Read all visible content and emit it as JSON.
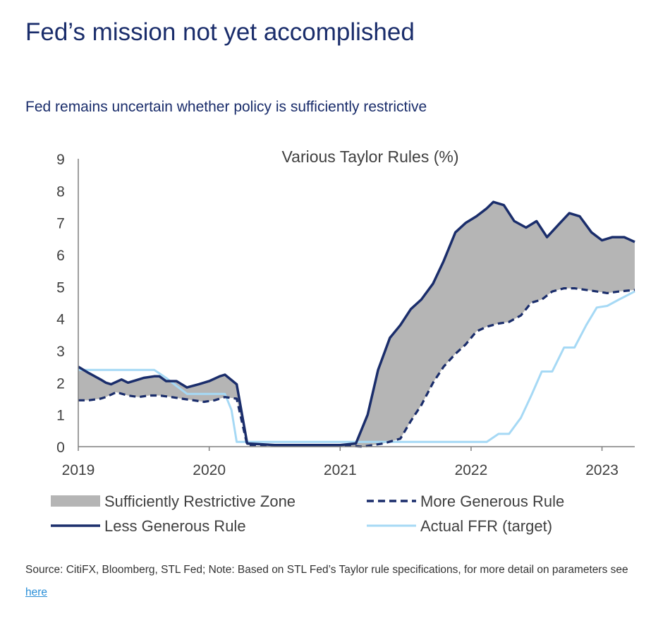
{
  "header": {
    "title": "Fed’s mission not yet accomplished",
    "subtitle": "Fed remains uncertain whether policy is sufficiently restrictive"
  },
  "footnote": {
    "text": "Source: CitiFX, Bloomberg, STL Fed; Note: Based on STL Fed’s Taylor rule specifications, for more detail on parameters see",
    "link_label": "here"
  },
  "colors": {
    "title": "#1a2d6b",
    "less_generous": "#1a2d6b",
    "more_generous": "#1a2d6b",
    "actual_ffr": "#a6d9f5",
    "zone_fill": "#b5b5b5",
    "axis": "#7f7f7f",
    "link": "#2a8fd8"
  },
  "chart_data": {
    "type": "line",
    "title": "Various Taylor Rules (%)",
    "xlabel": "",
    "ylabel": "",
    "x_ticks": [
      "2019",
      "2020",
      "2021",
      "2022",
      "2023"
    ],
    "xlim": [
      2019.0,
      2023.25
    ],
    "ylim": [
      0,
      9
    ],
    "y_ticks": [
      0,
      1,
      2,
      3,
      4,
      5,
      6,
      7,
      8,
      9
    ],
    "grid": false,
    "legend_position": "bottom",
    "shaded_area": {
      "name": "Sufficiently Restrictive Zone",
      "between": [
        "Less Generous Rule",
        "More Generous Rule"
      ]
    },
    "series": [
      {
        "name": "Less Generous Rule",
        "style": "solid",
        "points": [
          [
            2019.0,
            2.5
          ],
          [
            2019.08,
            2.3
          ],
          [
            2019.17,
            2.1
          ],
          [
            2019.21,
            2.0
          ],
          [
            2019.25,
            1.95
          ],
          [
            2019.33,
            2.1
          ],
          [
            2019.38,
            2.0
          ],
          [
            2019.46,
            2.1
          ],
          [
            2019.5,
            2.15
          ],
          [
            2019.58,
            2.2
          ],
          [
            2019.62,
            2.2
          ],
          [
            2019.67,
            2.05
          ],
          [
            2019.75,
            2.05
          ],
          [
            2019.83,
            1.85
          ],
          [
            2019.92,
            1.95
          ],
          [
            2020.0,
            2.05
          ],
          [
            2020.08,
            2.2
          ],
          [
            2020.12,
            2.25
          ],
          [
            2020.21,
            1.95
          ],
          [
            2020.29,
            0.1
          ],
          [
            2020.5,
            0.05
          ],
          [
            2021.0,
            0.05
          ],
          [
            2021.12,
            0.1
          ],
          [
            2021.21,
            1.0
          ],
          [
            2021.29,
            2.4
          ],
          [
            2021.38,
            3.4
          ],
          [
            2021.46,
            3.8
          ],
          [
            2021.54,
            4.3
          ],
          [
            2021.62,
            4.6
          ],
          [
            2021.71,
            5.1
          ],
          [
            2021.79,
            5.8
          ],
          [
            2021.88,
            6.7
          ],
          [
            2021.96,
            7.0
          ],
          [
            2022.04,
            7.2
          ],
          [
            2022.12,
            7.45
          ],
          [
            2022.17,
            7.65
          ],
          [
            2022.25,
            7.55
          ],
          [
            2022.33,
            7.05
          ],
          [
            2022.42,
            6.85
          ],
          [
            2022.5,
            7.05
          ],
          [
            2022.58,
            6.55
          ],
          [
            2022.67,
            6.95
          ],
          [
            2022.75,
            7.3
          ],
          [
            2022.83,
            7.2
          ],
          [
            2022.92,
            6.7
          ],
          [
            2023.0,
            6.45
          ],
          [
            2023.08,
            6.55
          ],
          [
            2023.17,
            6.55
          ],
          [
            2023.25,
            6.4
          ]
        ]
      },
      {
        "name": "More Generous Rule",
        "style": "dashed",
        "points": [
          [
            2019.0,
            1.45
          ],
          [
            2019.08,
            1.45
          ],
          [
            2019.17,
            1.5
          ],
          [
            2019.21,
            1.55
          ],
          [
            2019.29,
            1.7
          ],
          [
            2019.38,
            1.6
          ],
          [
            2019.46,
            1.55
          ],
          [
            2019.54,
            1.6
          ],
          [
            2019.62,
            1.6
          ],
          [
            2019.71,
            1.55
          ],
          [
            2019.79,
            1.5
          ],
          [
            2019.88,
            1.45
          ],
          [
            2019.96,
            1.4
          ],
          [
            2020.04,
            1.45
          ],
          [
            2020.12,
            1.55
          ],
          [
            2020.21,
            1.5
          ],
          [
            2020.29,
            0.05
          ],
          [
            2020.5,
            0.05
          ],
          [
            2021.0,
            0.05
          ],
          [
            2021.17,
            0.0
          ],
          [
            2021.33,
            0.1
          ],
          [
            2021.46,
            0.25
          ],
          [
            2021.54,
            0.8
          ],
          [
            2021.62,
            1.3
          ],
          [
            2021.71,
            2.0
          ],
          [
            2021.79,
            2.5
          ],
          [
            2021.88,
            2.9
          ],
          [
            2021.96,
            3.2
          ],
          [
            2022.04,
            3.6
          ],
          [
            2022.12,
            3.75
          ],
          [
            2022.21,
            3.85
          ],
          [
            2022.29,
            3.9
          ],
          [
            2022.38,
            4.1
          ],
          [
            2022.46,
            4.5
          ],
          [
            2022.54,
            4.6
          ],
          [
            2022.62,
            4.85
          ],
          [
            2022.71,
            4.95
          ],
          [
            2022.79,
            4.95
          ],
          [
            2022.88,
            4.9
          ],
          [
            2022.96,
            4.85
          ],
          [
            2023.04,
            4.8
          ],
          [
            2023.13,
            4.85
          ],
          [
            2023.25,
            4.9
          ]
        ]
      },
      {
        "name": "Actual FFR (target)",
        "style": "solid",
        "points": [
          [
            2019.0,
            2.4
          ],
          [
            2019.58,
            2.4
          ],
          [
            2019.67,
            2.15
          ],
          [
            2019.75,
            1.9
          ],
          [
            2019.83,
            1.65
          ],
          [
            2020.12,
            1.65
          ],
          [
            2020.17,
            1.15
          ],
          [
            2020.21,
            0.15
          ],
          [
            2020.5,
            0.15
          ],
          [
            2021.0,
            0.15
          ],
          [
            2021.5,
            0.15
          ],
          [
            2022.0,
            0.15
          ],
          [
            2022.12,
            0.15
          ],
          [
            2022.21,
            0.4
          ],
          [
            2022.29,
            0.4
          ],
          [
            2022.38,
            0.9
          ],
          [
            2022.46,
            1.6
          ],
          [
            2022.54,
            2.35
          ],
          [
            2022.58,
            2.35
          ],
          [
            2022.62,
            2.35
          ],
          [
            2022.71,
            3.1
          ],
          [
            2022.79,
            3.1
          ],
          [
            2022.88,
            3.8
          ],
          [
            2022.96,
            4.35
          ],
          [
            2023.04,
            4.4
          ],
          [
            2023.13,
            4.6
          ],
          [
            2023.25,
            4.85
          ]
        ]
      }
    ]
  }
}
